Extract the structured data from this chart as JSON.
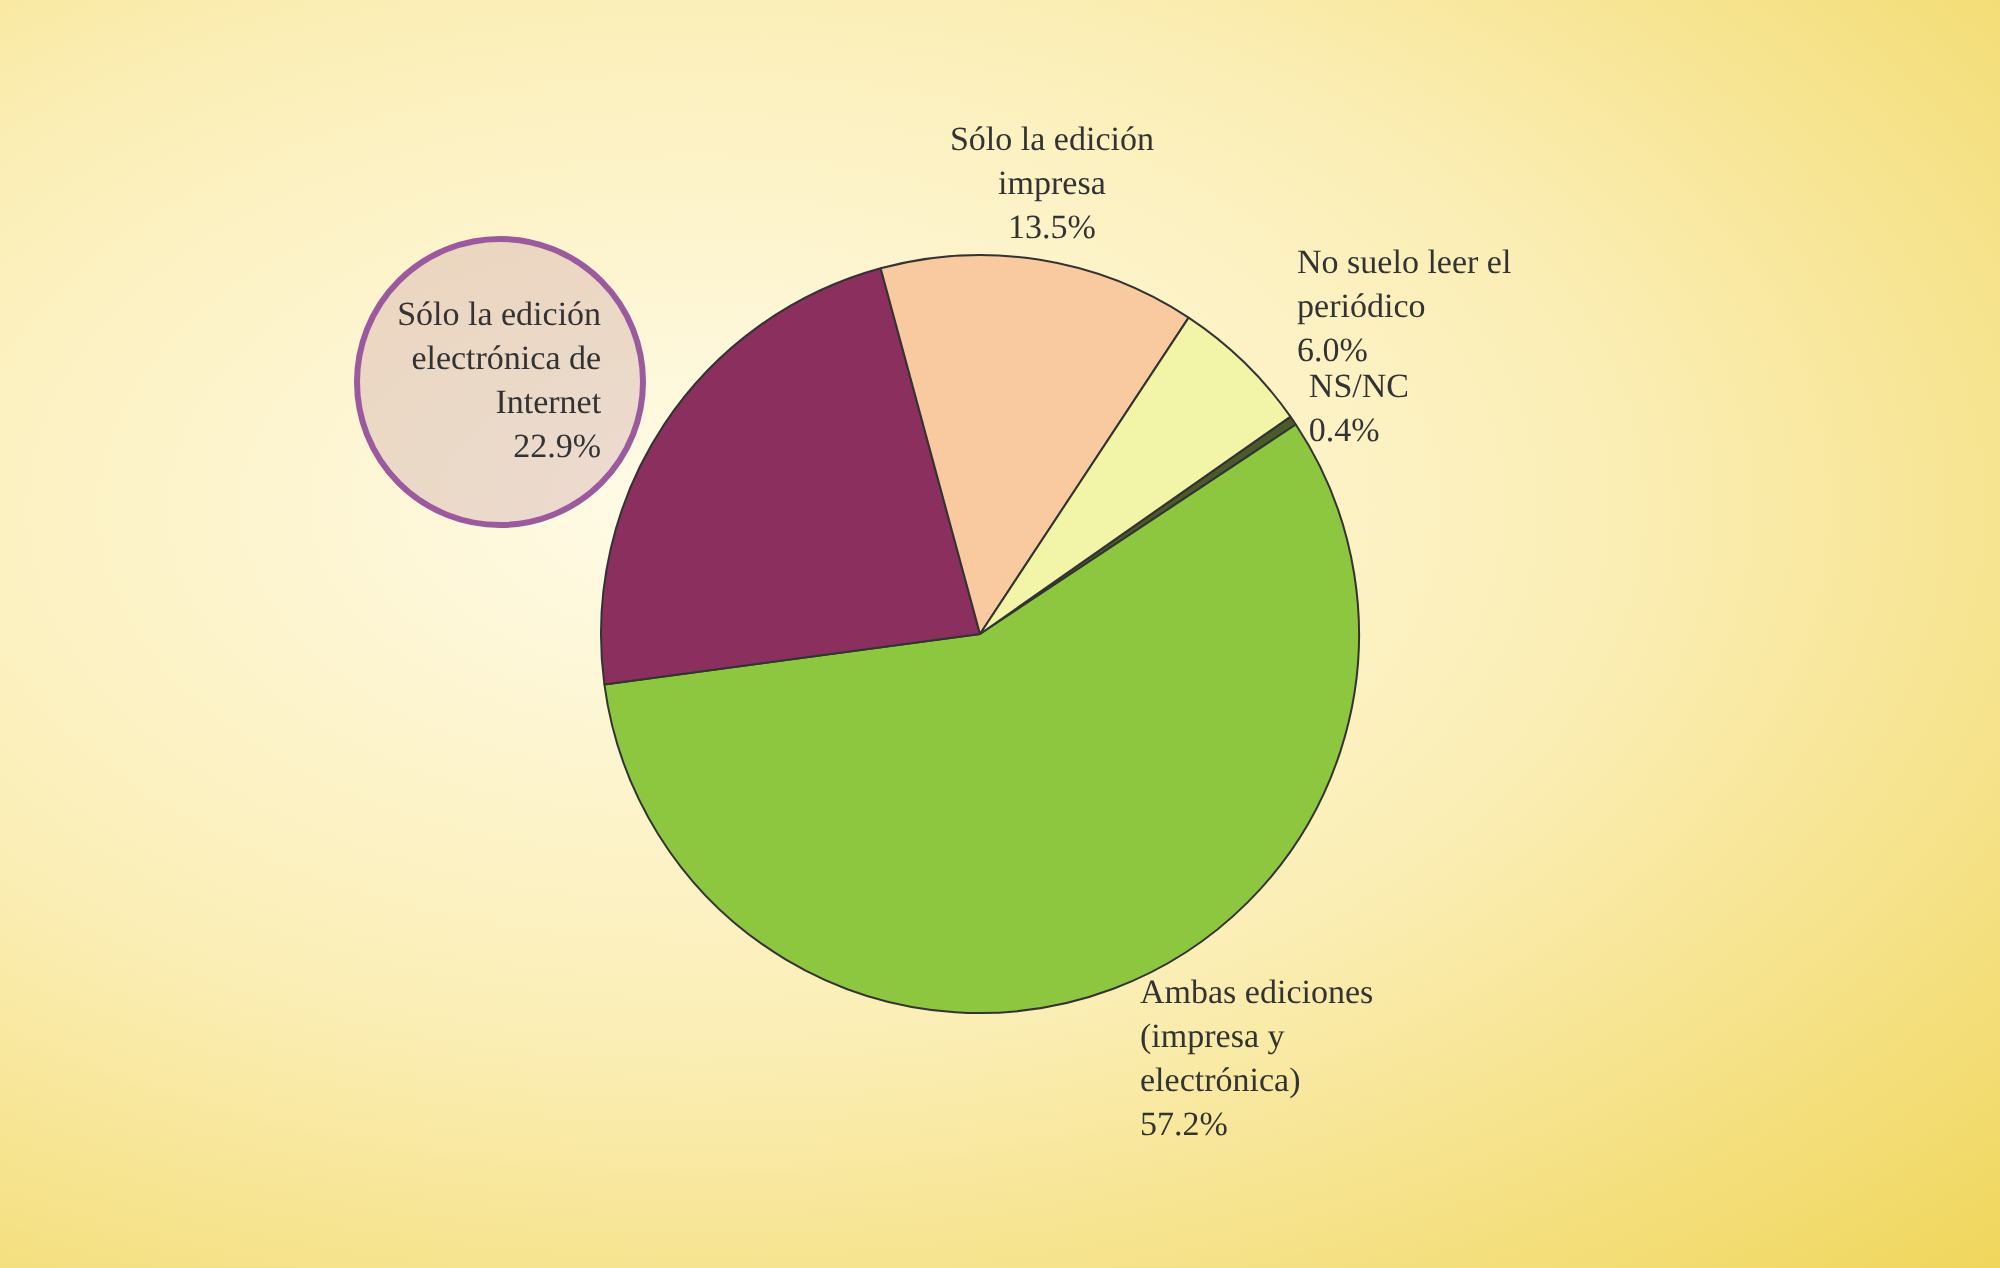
{
  "chart_data": {
    "type": "pie",
    "categories": [
      "NS/NC",
      "Ambas ediciones (impresa y electrónica)",
      "Sólo la edición electrónica de Internet",
      "Sólo la edición impresa",
      "No suelo leer el periódico"
    ],
    "values": [
      0.4,
      57.2,
      22.9,
      13.5,
      6.0
    ],
    "colors": [
      "#4a5a2a",
      "#8dc63f",
      "#8b2f5e",
      "#f9c9a0",
      "#f2f5a8"
    ],
    "value_labels": [
      "0.4%",
      "57.2%",
      "22.9%",
      "13.5%",
      "6.0%"
    ],
    "legend": false
  }
}
